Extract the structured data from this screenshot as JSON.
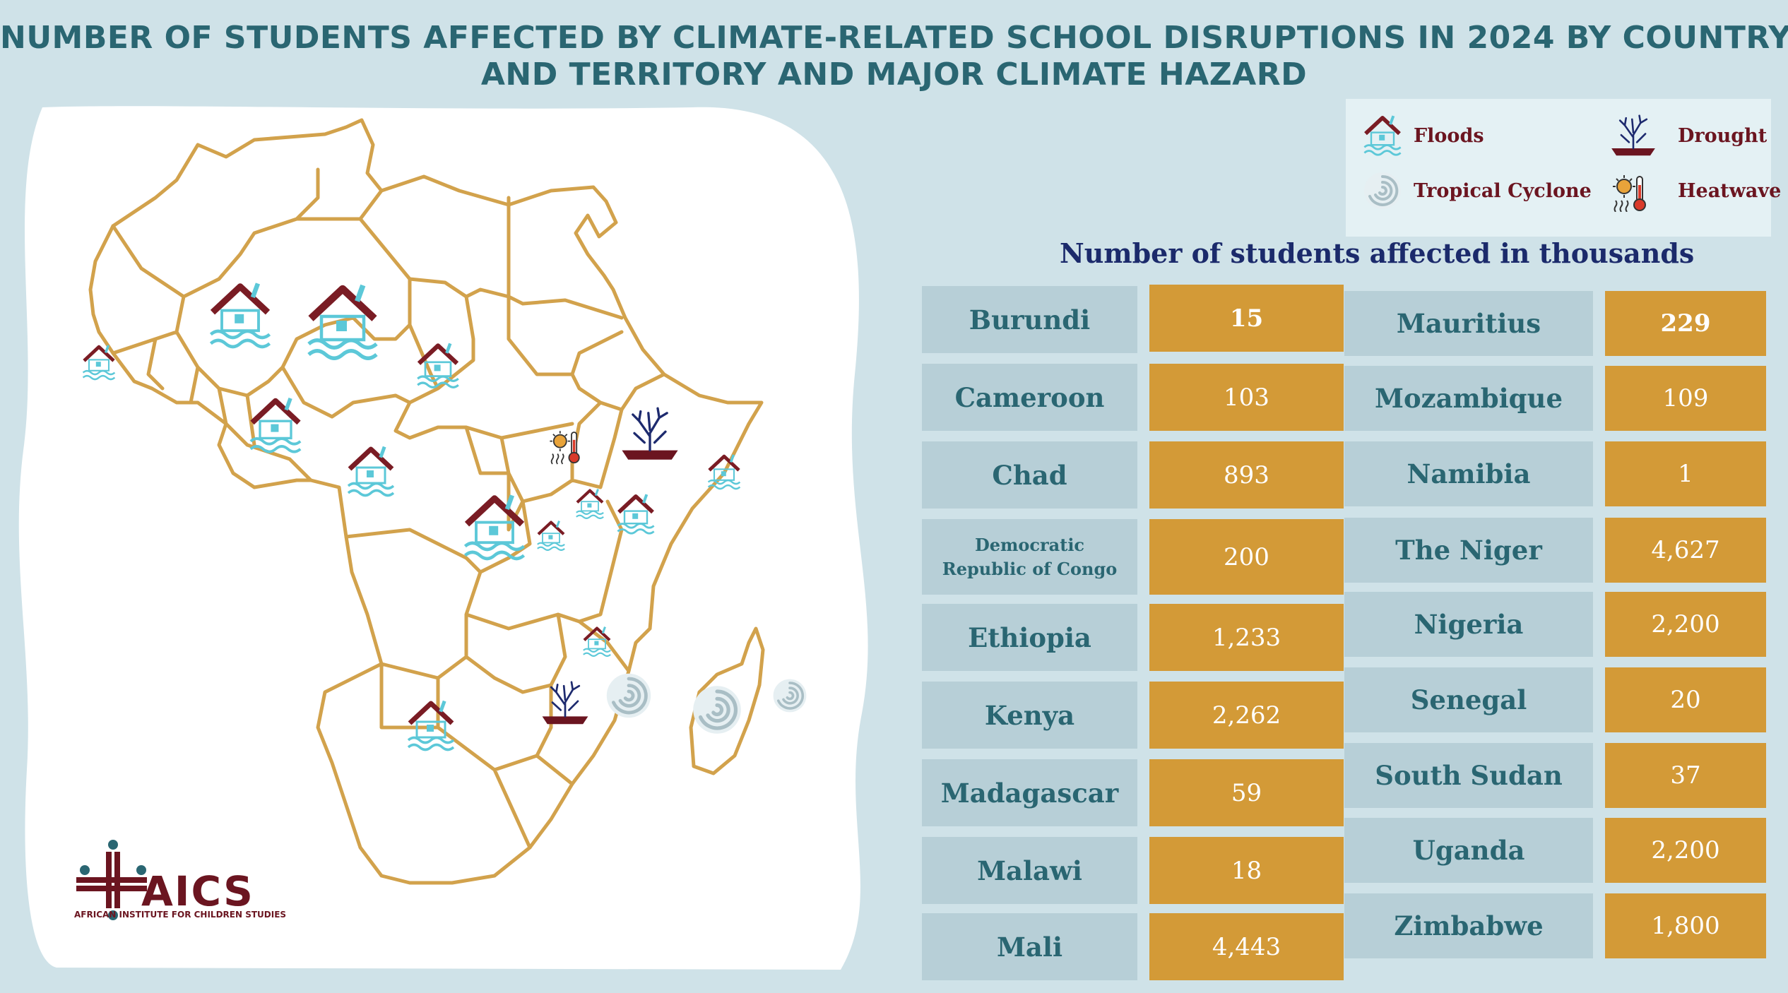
{
  "title": {
    "line1": "NUMBER OF STUDENTS AFFECTED BY CLIMATE-RELATED SCHOOL DISRUPTIONS IN 2024 BY COUNTRY",
    "line2": "AND TERRITORY AND MAJOR CLIMATE HAZARD"
  },
  "legend": {
    "floods": "Floods",
    "drought": "Drought",
    "cyclone": "Tropical Cyclone",
    "heatwave": "Heatwave"
  },
  "colors": {
    "background": "#cfe2e8",
    "title": "#2a6672",
    "name_cell": "#b7cfd7",
    "value_cell": "#d39a37",
    "map_border": "#d2a24c",
    "flood_icon": "#5cc8d8",
    "roof": "#7a1c24"
  },
  "table_caption": "Number of students affected in thousands",
  "logo": {
    "text": "AICS",
    "subtitle": "AFRICAN INSTITUTE FOR CHILDREN STUDIES"
  },
  "chart_data": {
    "type": "table",
    "title": "NUMBER OF STUDENTS AFFECTED BY CLIMATE-RELATED SCHOOL DISRUPTIONS IN 2024 BY COUNTRY AND TERRITORY AND MAJOR CLIMATE HAZARD",
    "unit": "Number of students affected in thousands",
    "rows": [
      {
        "country": "Burundi",
        "value": "15"
      },
      {
        "country": "Cameroon",
        "value": "103"
      },
      {
        "country": "Chad",
        "value": "893"
      },
      {
        "country": "Democratic Republic of Congo",
        "value": "200"
      },
      {
        "country": "Ethiopia",
        "value": "1,233"
      },
      {
        "country": "Kenya",
        "value": "2,262"
      },
      {
        "country": "Madagascar",
        "value": "59"
      },
      {
        "country": "Malawi",
        "value": "18"
      },
      {
        "country": "Mali",
        "value": "4,443"
      },
      {
        "country": "Mauritius",
        "value": "229"
      },
      {
        "country": "Mozambique",
        "value": "109"
      },
      {
        "country": "Namibia",
        "value": "1"
      },
      {
        "country": "The Niger",
        "value": "4,627"
      },
      {
        "country": "Nigeria",
        "value": "2,200"
      },
      {
        "country": "Senegal",
        "value": "20"
      },
      {
        "country": "South Sudan",
        "value": "37"
      },
      {
        "country": "Uganda",
        "value": "2,200"
      },
      {
        "country": "Zimbabwe",
        "value": "1,800"
      }
    ]
  }
}
